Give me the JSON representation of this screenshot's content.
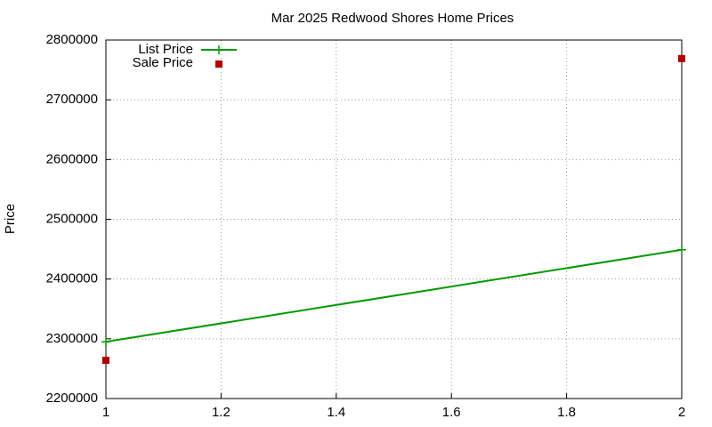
{
  "chart_data": {
    "type": "line",
    "title": "Mar 2025 Redwood Shores Home Prices",
    "y_label": "Price",
    "x": [
      1,
      2
    ],
    "series": [
      {
        "name": "List Price",
        "color": "#009900",
        "style": "linespoints",
        "values": [
          2295000,
          2449000
        ]
      },
      {
        "name": "Sale Price",
        "color": "#b00000",
        "style": "points",
        "values": [
          2264000,
          2769000
        ]
      }
    ],
    "xlim": [
      1,
      2
    ],
    "xticks": [
      1,
      1.2,
      1.4,
      1.6,
      1.8,
      2
    ],
    "ylim": [
      2200000,
      2800000
    ],
    "yticks": [
      2200000,
      2300000,
      2400000,
      2500000,
      2600000,
      2700000,
      2800000
    ],
    "grid": true,
    "legend": "top-left"
  }
}
